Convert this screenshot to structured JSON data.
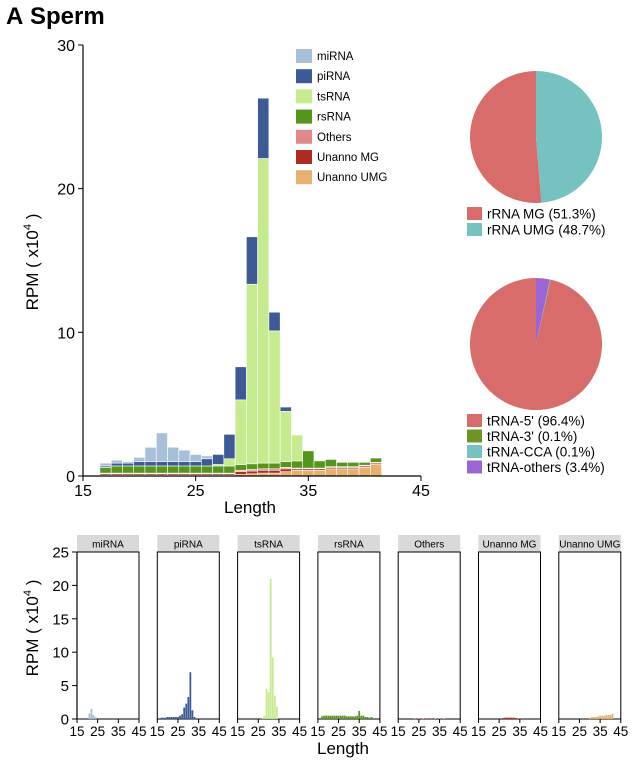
{
  "panel": {
    "letter": "A",
    "title": "Sperm"
  },
  "chart_data": [
    {
      "type": "bar",
      "stacked": true,
      "ylabel_base": "RPM ( x10",
      "ylabel_exp": "4",
      "ylabel_close": " )",
      "xlabel": "Length",
      "xlim": [
        15,
        45
      ],
      "ylim": [
        0,
        30
      ],
      "xticks": [
        "15",
        "25",
        "35",
        "45"
      ],
      "yticks": [
        "0",
        "10",
        "20",
        "30"
      ],
      "legend_position": "top-right",
      "x": [
        17,
        18,
        19,
        20,
        21,
        22,
        23,
        24,
        25,
        26,
        27,
        28,
        29,
        30,
        31,
        32,
        33,
        34,
        35,
        36,
        37,
        38,
        39,
        40,
        41
      ],
      "series": [
        {
          "name": "Unanno UMG",
          "color": "#e6b06e",
          "values": [
            0.05,
            0.05,
            0.05,
            0.05,
            0.05,
            0.05,
            0.05,
            0.05,
            0.05,
            0.05,
            0.05,
            0.05,
            0.1,
            0.15,
            0.2,
            0.2,
            0.3,
            0.4,
            0.4,
            0.4,
            0.5,
            0.5,
            0.5,
            0.6,
            0.8
          ]
        },
        {
          "name": "Unanno MG",
          "color": "#b02a20",
          "values": [
            0.1,
            0.1,
            0.1,
            0.1,
            0.1,
            0.1,
            0.1,
            0.1,
            0.1,
            0.1,
            0.1,
            0.1,
            0.2,
            0.2,
            0.2,
            0.2,
            0.2,
            0.1,
            0.1,
            0.1,
            0.1,
            0.1,
            0.1,
            0.1,
            0.1
          ]
        },
        {
          "name": "Others",
          "color": "#e0898a",
          "values": [
            0.05,
            0.05,
            0.05,
            0.05,
            0.05,
            0.05,
            0.05,
            0.05,
            0.05,
            0.05,
            0.05,
            0.05,
            0.1,
            0.1,
            0.1,
            0.1,
            0.1,
            0.05,
            0.05,
            0.05,
            0.05,
            0.05,
            0.05,
            0.05,
            0.05
          ]
        },
        {
          "name": "rsRNA",
          "color": "#55951c",
          "values": [
            0.4,
            0.5,
            0.5,
            0.5,
            0.5,
            0.5,
            0.5,
            0.5,
            0.5,
            0.5,
            0.5,
            0.5,
            0.4,
            0.4,
            0.4,
            0.4,
            0.4,
            0.5,
            1.2,
            0.5,
            0.5,
            0.3,
            0.3,
            0.2,
            0.3
          ]
        },
        {
          "name": "tsRNA",
          "color": "#c5eb8e",
          "values": [
            0,
            0,
            0,
            0,
            0,
            0,
            0,
            0,
            0,
            0,
            0.1,
            0.5,
            4.5,
            12.5,
            21.2,
            9.2,
            3.5,
            1.8,
            0,
            0,
            0,
            0,
            0,
            0,
            0
          ]
        },
        {
          "name": "piRNA",
          "color": "#3b5a96",
          "values": [
            0.1,
            0.2,
            0.2,
            0.3,
            0.3,
            0.3,
            0.3,
            0.3,
            0.3,
            0.5,
            0.7,
            1.7,
            2.3,
            3.3,
            4.2,
            1.3,
            0.3,
            0,
            0,
            0,
            0,
            0,
            0,
            0,
            0
          ]
        },
        {
          "name": "miRNA",
          "color": "#a7c0d8",
          "values": [
            0.2,
            0.2,
            0.1,
            0.3,
            1.0,
            2.0,
            1.0,
            0.8,
            0.5,
            0.2,
            0,
            0,
            0,
            0,
            0,
            0,
            0,
            0,
            0,
            0,
            0,
            0,
            0,
            0,
            0
          ]
        }
      ],
      "legend_order": [
        "miRNA",
        "piRNA",
        "tsRNA",
        "rsRNA",
        "Others",
        "Unanno MG",
        "Unanno UMG"
      ]
    },
    {
      "type": "pie",
      "slices": [
        {
          "label": "rRNA MG (51.3%)",
          "value": 51.3,
          "color": "#d86c6a"
        },
        {
          "label": "rRNA UMG (48.7%)",
          "value": 48.7,
          "color": "#76c2c0"
        }
      ]
    },
    {
      "type": "pie",
      "slices": [
        {
          "label": "tRNA-5' (96.4%)",
          "value": 96.4,
          "color": "#d86c6a"
        },
        {
          "label": "tRNA-3' (0.1%)",
          "value": 0.1,
          "color": "#6c9423"
        },
        {
          "label": "tRNA-CCA (0.1%)",
          "value": 0.1,
          "color": "#76c2c0"
        },
        {
          "label": "tRNA-others (3.4%)",
          "value": 3.4,
          "color": "#9c65d6"
        }
      ]
    },
    {
      "type": "bar",
      "faceted": true,
      "ylabel_base": "RPM ( x10",
      "ylabel_exp": "4",
      "ylabel_close": " )",
      "xlabel": "Length",
      "xlim": [
        15,
        45
      ],
      "ylim": [
        0,
        25
      ],
      "xticks": [
        "15",
        "25",
        "35",
        "45"
      ],
      "yticks": [
        "0",
        "5",
        "10",
        "15",
        "20",
        "25"
      ],
      "facets": [
        {
          "name": "miRNA",
          "color": "#a7c0d8",
          "x": [
            21,
            22,
            23,
            24
          ],
          "values": [
            0.8,
            1.5,
            0.6,
            0.3
          ]
        },
        {
          "name": "piRNA",
          "color": "#3b5a96",
          "x": [
            17,
            18,
            19,
            20,
            21,
            22,
            23,
            24,
            25,
            26,
            27,
            28,
            29,
            30,
            31,
            32,
            33
          ],
          "values": [
            0.2,
            0.2,
            0.2,
            0.3,
            0.3,
            0.3,
            0.3,
            0.3,
            0.3,
            0.5,
            0.7,
            1.7,
            2.3,
            3.3,
            7.0,
            1.3,
            0.3
          ]
        },
        {
          "name": "tsRNA",
          "color": "#c5eb8e",
          "x": [
            27,
            28,
            29,
            30,
            31,
            32,
            33,
            34
          ],
          "values": [
            0.2,
            0.5,
            4.5,
            4.0,
            21.0,
            9.2,
            3.5,
            1.8
          ]
        },
        {
          "name": "rsRNA",
          "color": "#55951c",
          "x": [
            17,
            18,
            19,
            20,
            21,
            22,
            23,
            24,
            25,
            26,
            27,
            28,
            29,
            30,
            31,
            32,
            33,
            34,
            35,
            36,
            37,
            38,
            39,
            40,
            41
          ],
          "values": [
            0.4,
            0.5,
            0.5,
            0.5,
            0.5,
            0.5,
            0.5,
            0.5,
            0.5,
            0.5,
            0.5,
            0.5,
            0.4,
            0.4,
            0.4,
            0.4,
            0.4,
            0.5,
            1.2,
            0.5,
            0.5,
            0.3,
            0.3,
            0.2,
            0.3
          ]
        },
        {
          "name": "Others",
          "color": "#e0898a",
          "x": [
            23,
            25,
            27,
            29,
            31,
            33,
            35,
            37
          ],
          "values": [
            0.1,
            0.1,
            0.1,
            0.15,
            0.15,
            0.1,
            0.1,
            0.1
          ]
        },
        {
          "name": "Unanno MG",
          "color": "#b02a20",
          "x": [
            27,
            28,
            29,
            30,
            31,
            32,
            33,
            34,
            35
          ],
          "values": [
            0.15,
            0.2,
            0.2,
            0.2,
            0.2,
            0.2,
            0.15,
            0.1,
            0.1
          ]
        },
        {
          "name": "Unanno UMG",
          "color": "#e6b06e",
          "x": [
            30,
            31,
            32,
            33,
            34,
            35,
            36,
            37,
            38,
            39,
            40,
            41
          ],
          "values": [
            0.2,
            0.3,
            0.3,
            0.3,
            0.4,
            0.5,
            0.5,
            0.5,
            0.6,
            0.6,
            0.6,
            0.8
          ]
        }
      ]
    }
  ]
}
